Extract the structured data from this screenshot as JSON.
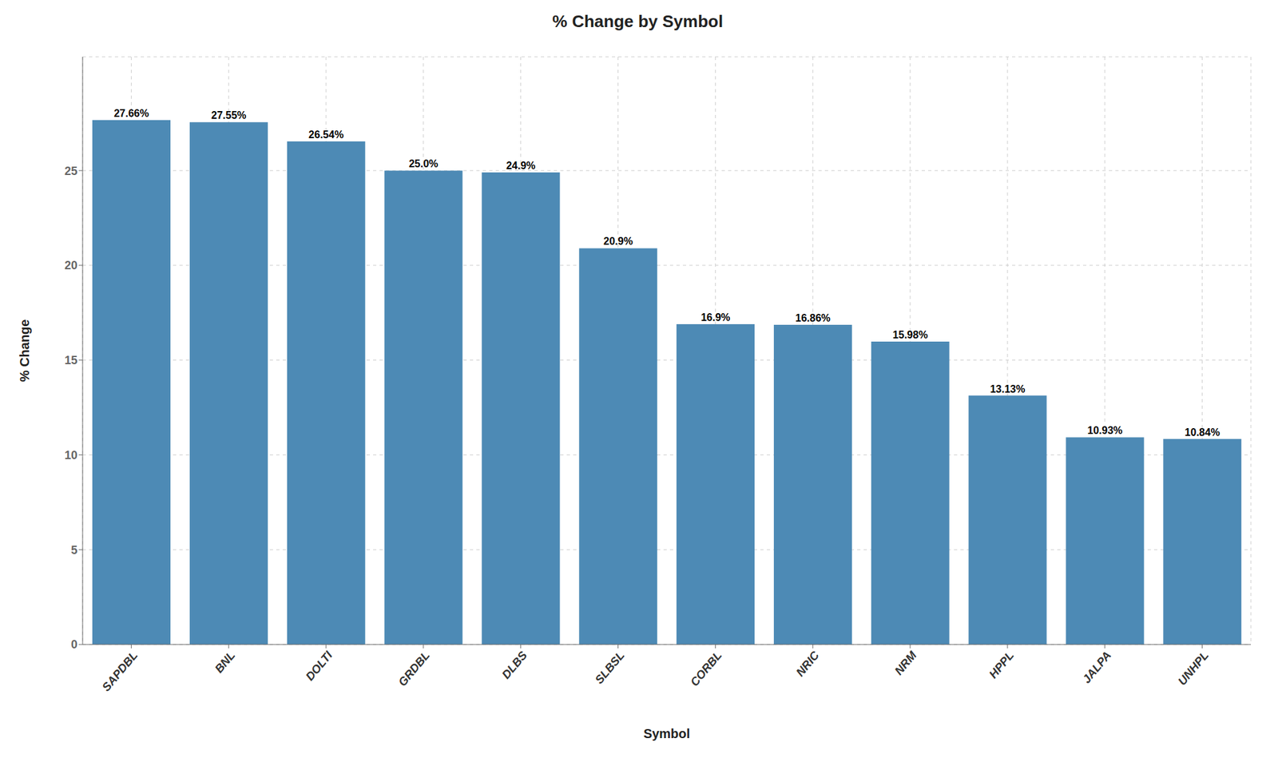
{
  "chart_data": {
    "type": "bar",
    "title": "% Change by Symbol",
    "xlabel": "Symbol",
    "ylabel": "% Change",
    "categories": [
      "SAPDBL",
      "BNL",
      "DOLTI",
      "GRDBL",
      "DLBS",
      "SLBSL",
      "CORBL",
      "NRIC",
      "NRM",
      "HPPL",
      "JALPA",
      "UNHPL"
    ],
    "values": [
      27.66,
      27.55,
      26.54,
      25.0,
      24.9,
      20.9,
      16.9,
      16.86,
      15.98,
      13.13,
      10.93,
      10.84
    ],
    "value_labels": [
      "27.66%",
      "27.55%",
      "26.54%",
      "25.0%",
      "24.9%",
      "20.9%",
      "16.9%",
      "16.86%",
      "15.98%",
      "13.13%",
      "10.93%",
      "10.84%"
    ],
    "color": "#4d8ab5",
    "ylim": [
      0,
      31
    ],
    "yticks": [
      0,
      5,
      10,
      15,
      20,
      25
    ],
    "grid": true,
    "data_labels": true
  }
}
